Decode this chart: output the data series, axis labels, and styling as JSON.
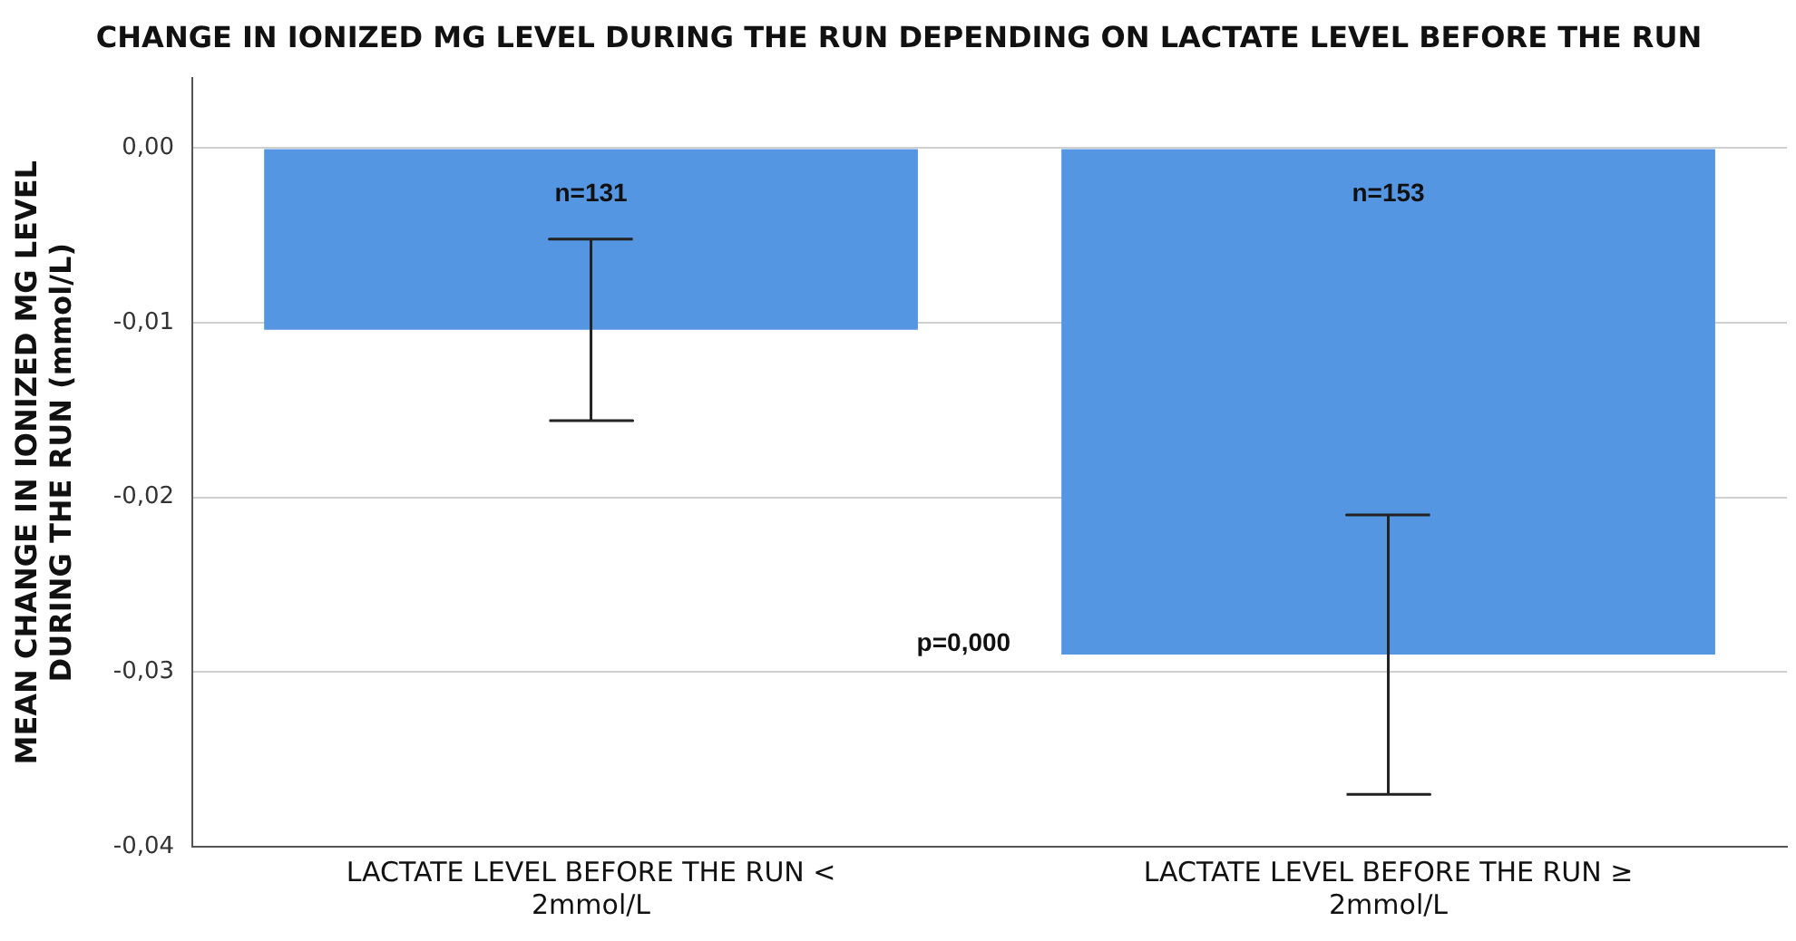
{
  "chart_data": {
    "type": "bar",
    "title": "CHANGE IN IONIZED MG LEVEL DURING THE RUN DEPENDING ON LACTATE LEVEL BEFORE THE RUN",
    "ylabel": "MEAN CHANGE IN IONIZED MG LEVEL DURING THE RUN (mmol/L)",
    "categories": [
      "LACTATE LEVEL BEFORE THE RUN < 2mmol/L",
      "LACTATE LEVEL BEFORE THE RUN ≥ 2mmol/L"
    ],
    "values": [
      -0.0104,
      -0.029
    ],
    "errors": [
      0.0052,
      0.008
    ],
    "color": "#5596e3",
    "ylim": [
      -0.04,
      0.004
    ],
    "yticks": [
      {
        "value": -0.04,
        "label": "-0,04"
      },
      {
        "value": -0.03,
        "label": "-0,03"
      },
      {
        "value": -0.02,
        "label": "-0,02"
      },
      {
        "value": -0.01,
        "label": "-0,01"
      },
      {
        "value": 0,
        "label": "0,00"
      }
    ],
    "grid": "y",
    "annotations": [
      "n=131",
      "n=153",
      "p=0,000"
    ]
  }
}
